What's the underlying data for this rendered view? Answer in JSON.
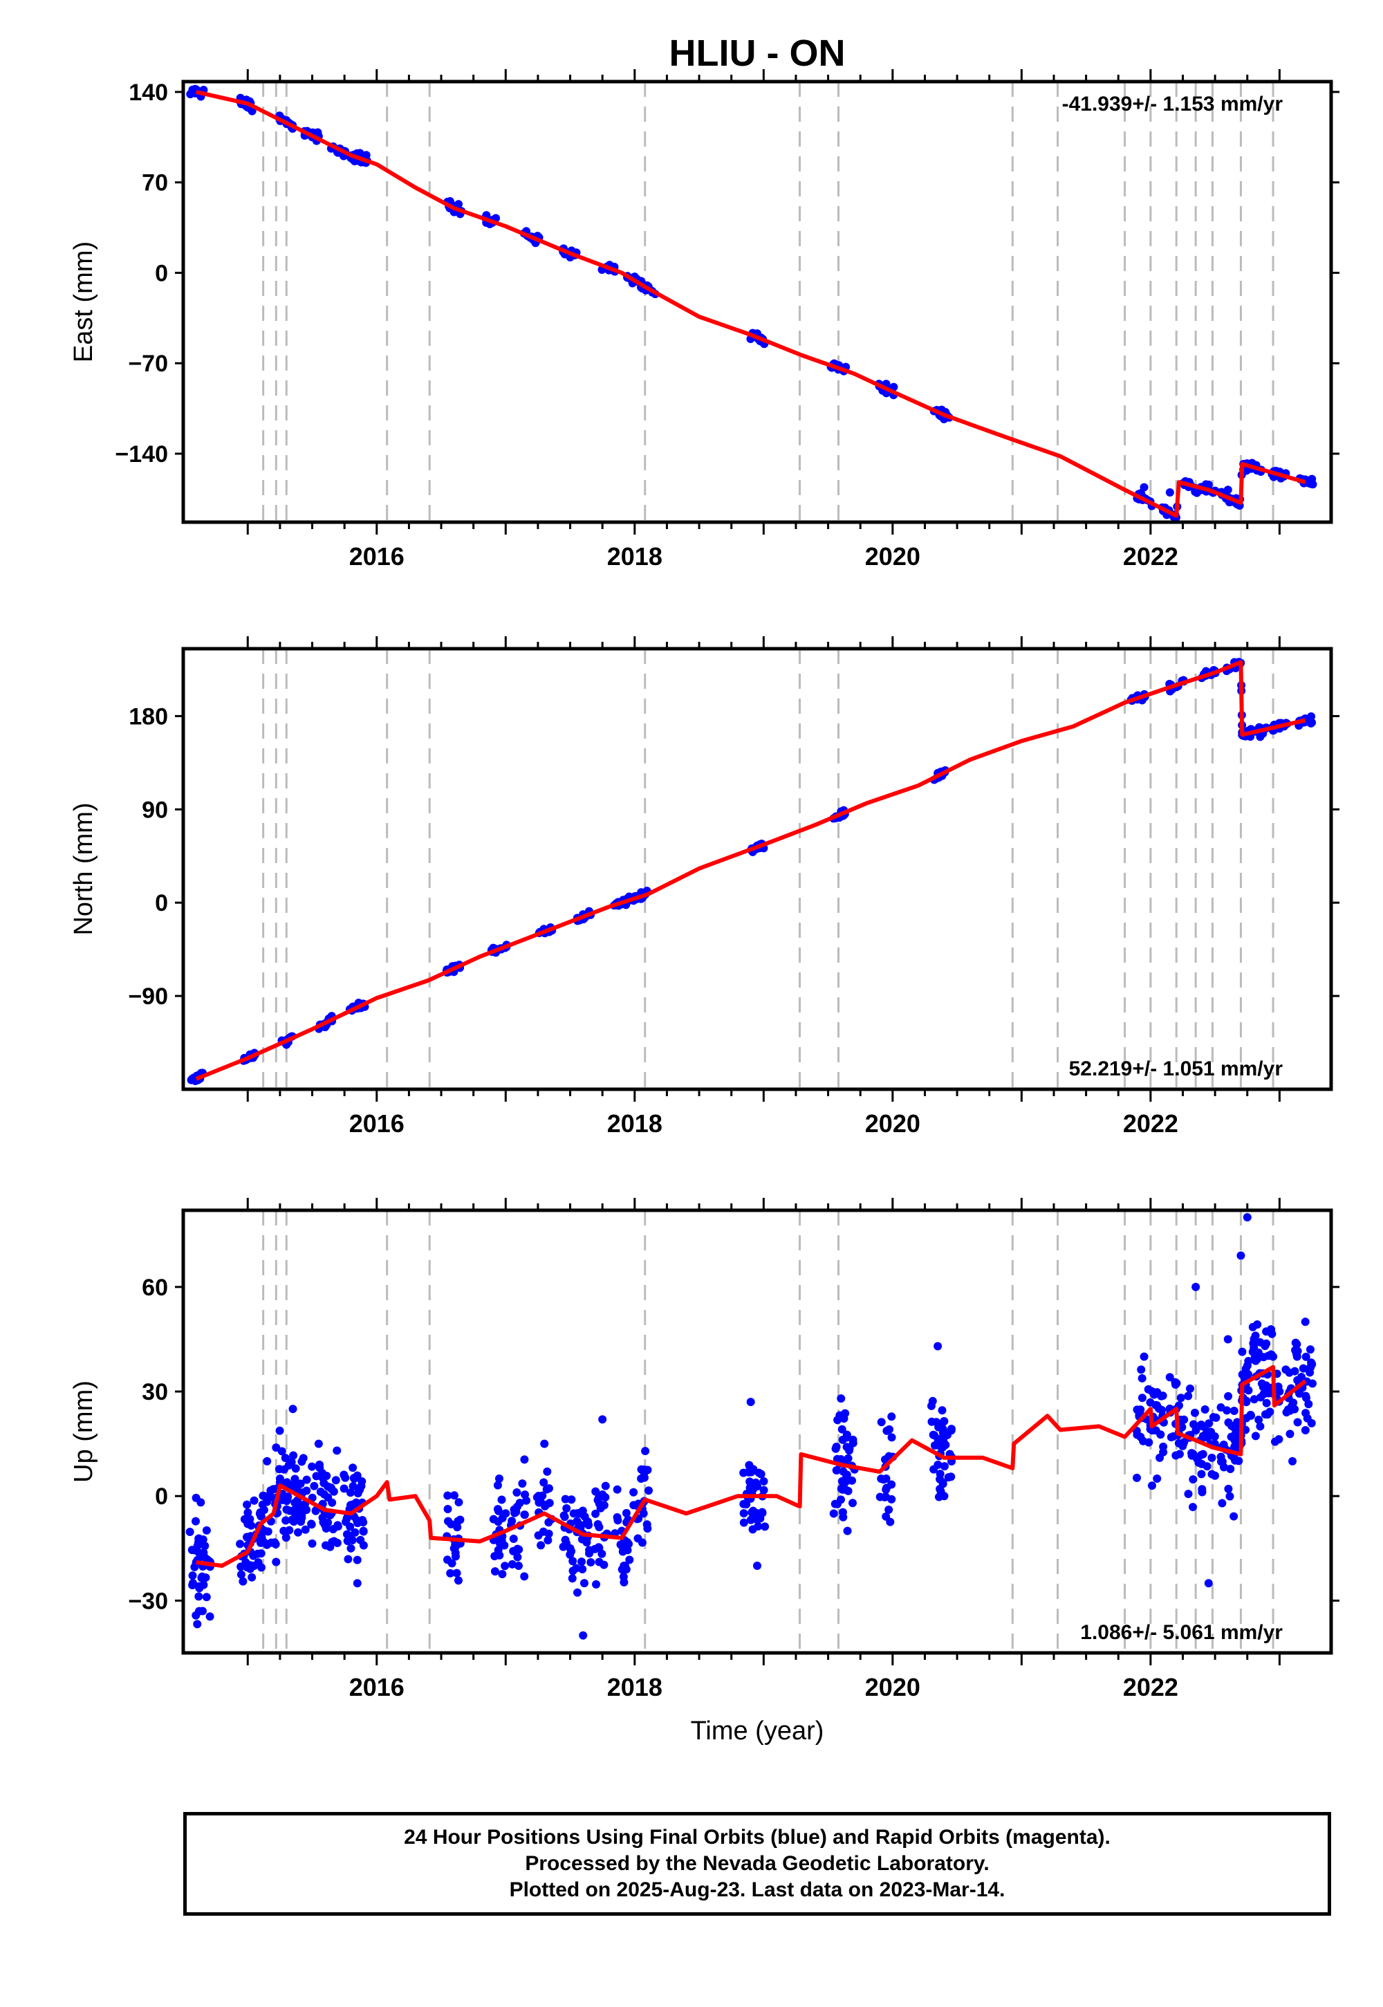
{
  "title": "HLIU - ON",
  "xlabel": "Time (year)",
  "footer": {
    "line1": "24 Hour Positions Using Final Orbits (blue) and Rapid Orbits (magenta).",
    "line2": "Processed by the Nevada Geodetic Laboratory.",
    "line3": "Plotted on 2025-Aug-23. Last data on 2023-Mar-14."
  },
  "colors": {
    "obs": "#0000ff",
    "model": "#ff0000",
    "event_line": "#bbbbbb",
    "frame": "#000000"
  },
  "chart_data": [
    {
      "type": "scatter",
      "name": "East",
      "ylabel": "East (mm)",
      "rate_label": "-41.939+/- 1.153 mm/yr",
      "xlim": [
        2014.5,
        2023.4
      ],
      "ylim": [
        -193,
        148
      ],
      "xticks": [
        2016,
        2018,
        2020,
        2022
      ],
      "yticks": [
        140,
        70,
        0,
        -70,
        -140
      ],
      "event_lines": [
        2015.12,
        2015.22,
        2015.3,
        2016.08,
        2016.41,
        2018.08,
        2019.28,
        2019.58,
        2020.93,
        2021.28,
        2021.8,
        2022.0,
        2022.2,
        2022.35,
        2022.48,
        2022.7,
        2022.95
      ],
      "series": [
        {
          "kind": "observations",
          "x": [
            2014.6,
            2015.0,
            2015.3,
            2015.5,
            2015.7,
            2015.8,
            2015.87,
            2016.6,
            2016.9,
            2017.2,
            2017.5,
            2017.8,
            2018.0,
            2018.1,
            2018.95,
            2019.58,
            2019.95,
            2020.38,
            2021.95,
            2022.15,
            2022.3,
            2022.45,
            2022.6,
            2022.72,
            2022.8,
            2023.0,
            2023.2
          ],
          "y": [
            142,
            128,
            118,
            105,
            93,
            90,
            89,
            47,
            40,
            28,
            12,
            2,
            -3,
            -12,
            -47,
            -73,
            -86,
            -106,
            -166,
            -170,
            -162,
            -164,
            -168,
            -148,
            -150,
            -154,
            -160
          ]
        },
        {
          "kind": "model",
          "x": [
            2014.6,
            2015.0,
            2015.5,
            2015.8,
            2016.0,
            2016.3,
            2016.6,
            2017.0,
            2017.5,
            2017.9,
            2018.1,
            2018.5,
            2018.9,
            2019.3,
            2019.7,
            2020.0,
            2020.4,
            2020.9,
            2021.3,
            2021.8,
            2022.2,
            2022.22,
            2022.45,
            2022.7,
            2022.71,
            2023.2
          ],
          "y": [
            140,
            131,
            106,
            91,
            84,
            66,
            50,
            36,
            15,
            0,
            -12,
            -34,
            -48,
            -64,
            -78,
            -92,
            -110,
            -128,
            -142,
            -168,
            -188,
            -162,
            -168,
            -178,
            -148,
            -162
          ]
        }
      ]
    },
    {
      "type": "scatter",
      "name": "North",
      "ylabel": "North (mm)",
      "rate_label": "52.219+/- 1.051 mm/yr",
      "xlim": [
        2014.5,
        2023.4
      ],
      "ylim": [
        -180,
        245
      ],
      "xticks": [
        2016,
        2018,
        2020,
        2022
      ],
      "yticks": [
        180,
        90,
        0,
        -90
      ],
      "event_lines": [
        2015.12,
        2015.22,
        2015.3,
        2016.08,
        2016.41,
        2018.08,
        2019.28,
        2019.58,
        2020.93,
        2021.28,
        2021.8,
        2022.0,
        2022.2,
        2022.35,
        2022.48,
        2022.7,
        2022.95
      ],
      "series": [
        {
          "kind": "observations",
          "x": [
            2014.6,
            2015.0,
            2015.3,
            2015.6,
            2015.85,
            2016.6,
            2016.95,
            2017.3,
            2017.6,
            2017.9,
            2018.05,
            2018.95,
            2019.6,
            2020.35,
            2021.9,
            2022.2,
            2022.45,
            2022.65,
            2022.72,
            2022.85,
            2023.0,
            2023.2
          ],
          "y": [
            -170,
            -150,
            -137,
            -120,
            -102,
            -62,
            -45,
            -28,
            -12,
            0,
            10,
            55,
            88,
            125,
            200,
            208,
            220,
            232,
            165,
            160,
            168,
            175
          ]
        },
        {
          "kind": "model",
          "x": [
            2014.6,
            2015.0,
            2015.5,
            2016.0,
            2016.4,
            2016.8,
            2017.3,
            2017.8,
            2018.1,
            2018.5,
            2019.0,
            2019.4,
            2019.8,
            2020.2,
            2020.6,
            2021.0,
            2021.4,
            2021.8,
            2022.2,
            2022.5,
            2022.7,
            2022.71,
            2023.2
          ],
          "y": [
            -170,
            -150,
            -122,
            -92,
            -75,
            -52,
            -28,
            -4,
            8,
            33,
            56,
            75,
            96,
            113,
            138,
            156,
            170,
            193,
            210,
            222,
            232,
            162,
            176
          ]
        }
      ]
    },
    {
      "type": "scatter",
      "name": "Up",
      "ylabel": "Up (mm)",
      "rate_label": "1.086+/- 5.061 mm/yr",
      "xlim": [
        2014.5,
        2023.4
      ],
      "ylim": [
        -45,
        82
      ],
      "xticks": [
        2016,
        2018,
        2020,
        2022
      ],
      "yticks": [
        60,
        30,
        0,
        -30
      ],
      "event_lines": [
        2015.12,
        2015.22,
        2015.3,
        2016.08,
        2016.41,
        2018.08,
        2019.28,
        2019.58,
        2020.93,
        2021.28,
        2021.8,
        2022.0,
        2022.2,
        2022.35,
        2022.48,
        2022.7,
        2022.95
      ],
      "series": [
        {
          "kind": "observations",
          "x": [
            2014.6,
            2014.65,
            2015.0,
            2015.05,
            2015.15,
            2015.25,
            2015.35,
            2015.4,
            2015.55,
            2015.65,
            2015.8,
            2015.85,
            2016.6,
            2016.95,
            2017.1,
            2017.3,
            2017.5,
            2017.6,
            2017.75,
            2017.9,
            2018.05,
            2018.9,
            2018.95,
            2019.6,
            2019.65,
            2019.95,
            2020.35,
            2020.4,
            2021.95,
            2022.05,
            2022.2,
            2022.35,
            2022.45,
            2022.6,
            2022.7,
            2022.75,
            2022.85,
            2022.95,
            2023.1,
            2023.2
          ],
          "y": [
            -19,
            -33,
            -8,
            -20,
            10,
            5,
            25,
            -5,
            15,
            2,
            -15,
            -25,
            -15,
            5,
            -20,
            15,
            -15,
            -40,
            22,
            -10,
            5,
            27,
            -20,
            28,
            -10,
            5,
            43,
            0,
            40,
            5,
            25,
            60,
            -25,
            45,
            69,
            80,
            20,
            40,
            10,
            50
          ]
        },
        {
          "kind": "model",
          "x": [
            2014.6,
            2014.8,
            2015.0,
            2015.1,
            2015.2,
            2015.25,
            2015.4,
            2015.6,
            2015.8,
            2016.0,
            2016.08,
            2016.1,
            2016.3,
            2016.41,
            2016.42,
            2016.8,
            2017.0,
            2017.3,
            2017.6,
            2017.9,
            2018.08,
            2018.4,
            2018.8,
            2019.1,
            2019.28,
            2019.29,
            2019.6,
            2019.9,
            2020.15,
            2020.4,
            2020.7,
            2020.93,
            2020.94,
            2021.2,
            2021.3,
            2021.6,
            2021.8,
            2022.0,
            2022.01,
            2022.2,
            2022.21,
            2022.35,
            2022.48,
            2022.7,
            2022.71,
            2022.95,
            2022.96,
            2023.2
          ],
          "y": [
            -19,
            -20,
            -16,
            -8,
            -5,
            3,
            0,
            -4,
            -5,
            0,
            4,
            -1,
            0,
            -7,
            -12,
            -13,
            -10,
            -5,
            -11,
            -12,
            -1,
            -5,
            0,
            0,
            -3,
            12,
            9,
            7,
            16,
            11,
            11,
            8,
            15,
            23,
            19,
            20,
            17,
            25,
            20,
            25,
            18,
            16,
            14,
            12,
            32,
            37,
            26,
            33
          ]
        }
      ]
    }
  ]
}
